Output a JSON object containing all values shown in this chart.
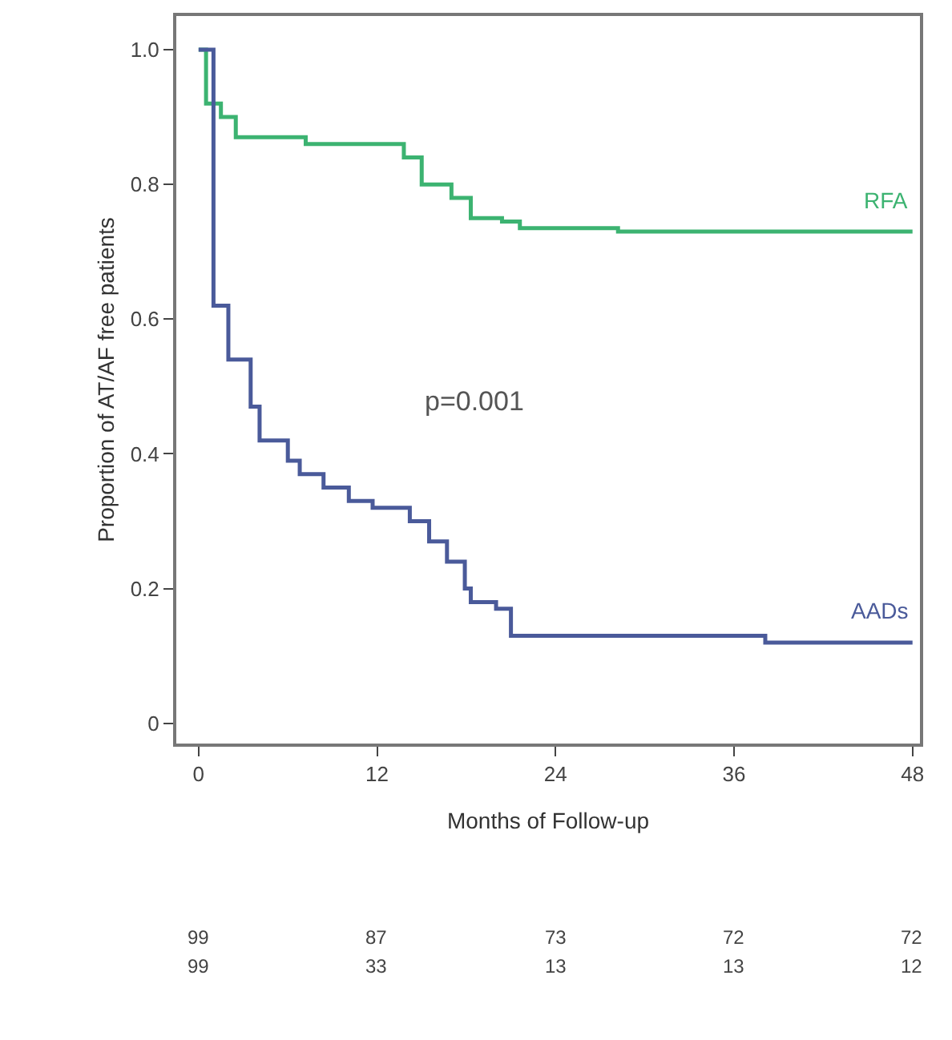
{
  "chart_data": {
    "type": "step",
    "xlabel": "Months of Follow-up",
    "ylabel": "Proportion of AT/AF free patients",
    "xlim": [
      -1.5,
      48.5
    ],
    "xticks": [
      0,
      12,
      24,
      36,
      48
    ],
    "ylim": [
      -0.03,
      1.05
    ],
    "yticks": [
      {
        "value": 0,
        "label": "0"
      },
      {
        "value": 0.2,
        "label": "0.2"
      },
      {
        "value": 0.4,
        "label": "0.4"
      },
      {
        "value": 0.6,
        "label": "0.6"
      },
      {
        "value": 0.8,
        "label": "0.8"
      },
      {
        "value": 1,
        "label": "1.0"
      }
    ],
    "grid": false,
    "legend": false,
    "marker": "none",
    "line_style": "solid",
    "series": [
      {
        "name": "RFA",
        "color": "#3cb371",
        "x": [
          0,
          0.5,
          1.5,
          2.5,
          7.2,
          13.8,
          15,
          17,
          18.3,
          20.4,
          21.6,
          28.2,
          48
        ],
        "values": [
          1,
          0.92,
          0.9,
          0.87,
          0.86,
          0.84,
          0.8,
          0.78,
          0.75,
          0.745,
          0.735,
          0.73,
          0.73
        ]
      },
      {
        "name": "AADs",
        "color": "#4a5a9a",
        "x": [
          0,
          1,
          2,
          3.5,
          4.1,
          6,
          6.8,
          8.4,
          10.1,
          11.7,
          14.2,
          15.5,
          16.7,
          17.9,
          18.3,
          20,
          21,
          38.1,
          48
        ],
        "values": [
          1,
          0.62,
          0.54,
          0.47,
          0.42,
          0.39,
          0.37,
          0.35,
          0.33,
          0.32,
          0.3,
          0.27,
          0.24,
          0.2,
          0.18,
          0.17,
          0.13,
          0.12,
          0.12
        ]
      }
    ],
    "annotations": [
      "p=0.001",
      "99",
      "87",
      "73",
      "72",
      "72",
      "99",
      "33",
      "13",
      "13",
      "12"
    ]
  }
}
